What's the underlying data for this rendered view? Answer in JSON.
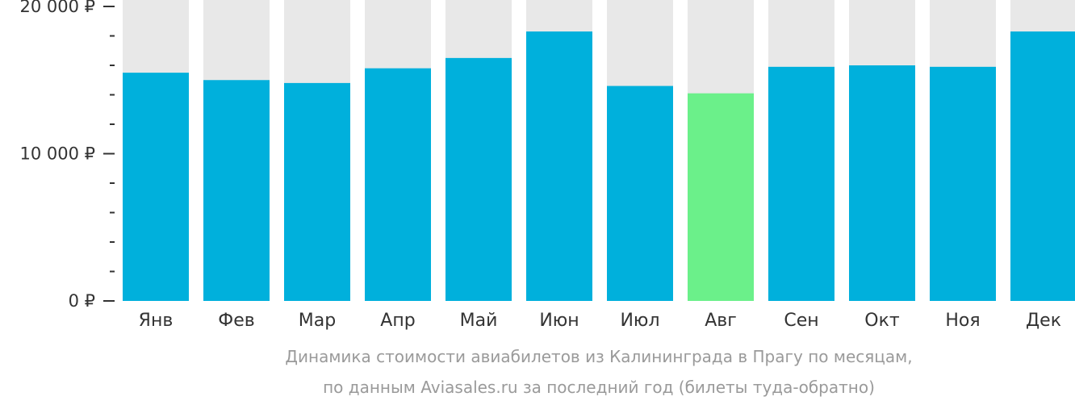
{
  "chart_data": {
    "type": "bar",
    "categories": [
      "Янв",
      "Фев",
      "Мар",
      "Апр",
      "Май",
      "Июн",
      "Июл",
      "Авг",
      "Сен",
      "Окт",
      "Ноя",
      "Дек"
    ],
    "series": [
      {
        "values": [
          15500,
          15000,
          14800,
          15800,
          16500,
          18300,
          14600,
          14100,
          15900,
          16000,
          15900,
          18300
        ]
      }
    ],
    "highlight_index": 7,
    "ylim": [
      0,
      20000
    ],
    "y_ticks": [
      {
        "value": 0,
        "label": "0 ₽"
      },
      {
        "value": 10000,
        "label": "10 000 ₽"
      },
      {
        "value": 20000,
        "label": "20 000 ₽"
      }
    ],
    "minor_tick_step": 2000,
    "caption_line_1": "Динамика стоимости авиабилетов из Калининграда в Прагу по месяцам,",
    "caption_line_2": "по данным Aviasales.ru за последний год (билеты туда-обратно)",
    "colors": {
      "bar": "#00b0dc",
      "highlight": "#6bf08a",
      "background_column": "#e8e8e8",
      "axis_tick": "#333333",
      "caption": "#9a9a9a"
    }
  }
}
